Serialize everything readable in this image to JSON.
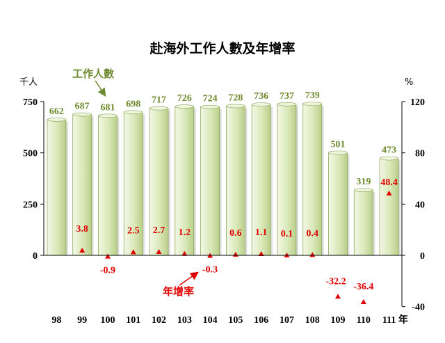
{
  "chart_data": {
    "type": "bar",
    "title": "赴海外工作人數及年增率",
    "left_axis_unit": "千人",
    "right_axis_unit": "%",
    "x_unit": "年",
    "categories": [
      "98",
      "99",
      "100",
      "101",
      "102",
      "103",
      "104",
      "105",
      "106",
      "107",
      "108",
      "109",
      "110",
      "111"
    ],
    "left_ticks": [
      0,
      250,
      500,
      750
    ],
    "right_ticks": [
      -40,
      0,
      40,
      80,
      120
    ],
    "ylim_left": [
      0,
      750
    ],
    "ylim_right": [
      -40,
      120
    ],
    "series": [
      {
        "name": "工作人數",
        "type": "bar",
        "axis": "left",
        "color": "#d9e8b8",
        "values": [
          662,
          687,
          681,
          698,
          717,
          726,
          724,
          728,
          736,
          737,
          739,
          501,
          319,
          473
        ]
      },
      {
        "name": "年增率",
        "type": "marker",
        "axis": "right",
        "color": "#e00000",
        "values": [
          null,
          3.8,
          -0.9,
          2.5,
          2.7,
          1.2,
          -0.3,
          0.6,
          1.1,
          0.1,
          0.4,
          -32.2,
          -36.4,
          48.4
        ],
        "labels": [
          "",
          "3.8",
          "-0.9",
          "2.5",
          "2.7",
          "1.2",
          "-0.3",
          "0.6",
          "1.1",
          "0.1",
          "0.4",
          "-32.2",
          "-36.4",
          "48.4"
        ]
      }
    ]
  }
}
